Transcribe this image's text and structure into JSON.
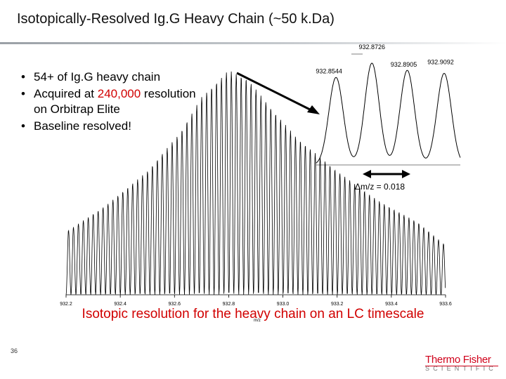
{
  "slide": {
    "title": "Isotopically-Resolved Ig.G Heavy Chain (~50 k.Da)",
    "bullets": [
      {
        "text": "54+ of Ig.G heavy chain"
      },
      {
        "prefix": "Acquired at ",
        "highlight": "240,000",
        "suffix": " resolution on Orbitrap Elite"
      },
      {
        "text": "Baseline resolved!"
      }
    ],
    "bottom_caption": "Isotopic resolution for the heavy chain on an LC timescale",
    "page_number": "36",
    "logo": {
      "line1": "Thermo Fisher",
      "line2": "SCIENTIFIC"
    },
    "colors": {
      "accent_red": "#d10000",
      "logo_red": "#d0021b",
      "trace": "#000000"
    }
  },
  "chart_data": [
    {
      "type": "line",
      "name": "main-spectrum",
      "xlabel": "m/z",
      "ylabel": "",
      "xlim": [
        932.2,
        933.6
      ],
      "ylim": [
        0,
        100
      ],
      "x_ticks": [
        "932.2",
        "932.4",
        "932.6",
        "932.8",
        "933.0",
        "933.2",
        "933.4",
        "933.6"
      ],
      "x_tick_values": [
        932.2,
        932.4,
        932.6,
        932.8,
        933.0,
        933.2,
        933.4,
        933.6
      ],
      "peak_spacing_mz": 0.0182,
      "envelope": {
        "x": [
          932.2,
          932.35,
          932.5,
          932.62,
          932.7,
          932.8,
          932.87,
          932.95,
          933.05,
          933.2,
          933.35,
          933.5,
          933.6
        ],
        "y": [
          28,
          40,
          55,
          72,
          88,
          100,
          96,
          84,
          70,
          55,
          42,
          32,
          22
        ]
      }
    },
    {
      "type": "line",
      "name": "zoom-inset",
      "peaks": [
        {
          "mz": 932.8544,
          "label": "932.8544",
          "height": 86
        },
        {
          "mz": 932.8726,
          "label": "932.8726",
          "height": 100
        },
        {
          "mz": 932.8905,
          "label": "932.8905",
          "height": 93
        },
        {
          "mz": 932.9092,
          "label": "932.9092",
          "height": 90
        }
      ],
      "annotation": "Δm/z = 0.018",
      "grid": false
    }
  ]
}
